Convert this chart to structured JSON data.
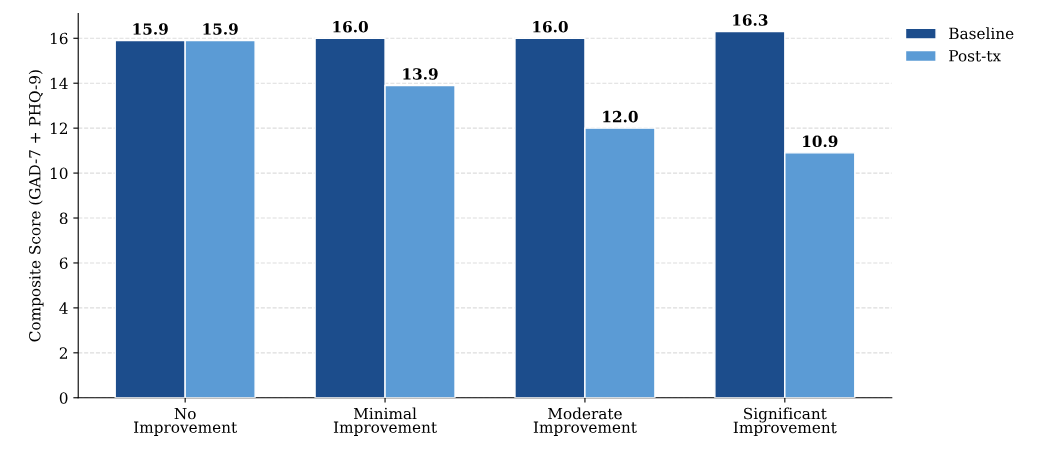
{
  "chart_data": {
    "type": "bar",
    "ylabel": "Composite Score (GAD-7 + PHQ-9)",
    "categories": [
      "No\nImprovement",
      "Minimal\nImprovement",
      "Moderate\nImprovement",
      "Significant\nImprovement"
    ],
    "series": [
      {
        "name": "Baseline",
        "color": "#1c4d8c",
        "values": [
          15.9,
          16.0,
          16.0,
          16.3
        ],
        "value_labels": [
          "15.9",
          "16.0",
          "16.0",
          "16.3"
        ]
      },
      {
        "name": "Post-tx",
        "color": "#5b9bd5",
        "values": [
          15.9,
          13.9,
          12.0,
          10.9
        ],
        "value_labels": [
          "15.9",
          "13.9",
          "12.0",
          "10.9"
        ]
      }
    ],
    "ylim": [
      0,
      17.1
    ],
    "yticks": [
      0,
      2,
      4,
      6,
      8,
      10,
      12,
      14,
      16
    ],
    "grid": "y",
    "legend": "top right"
  }
}
